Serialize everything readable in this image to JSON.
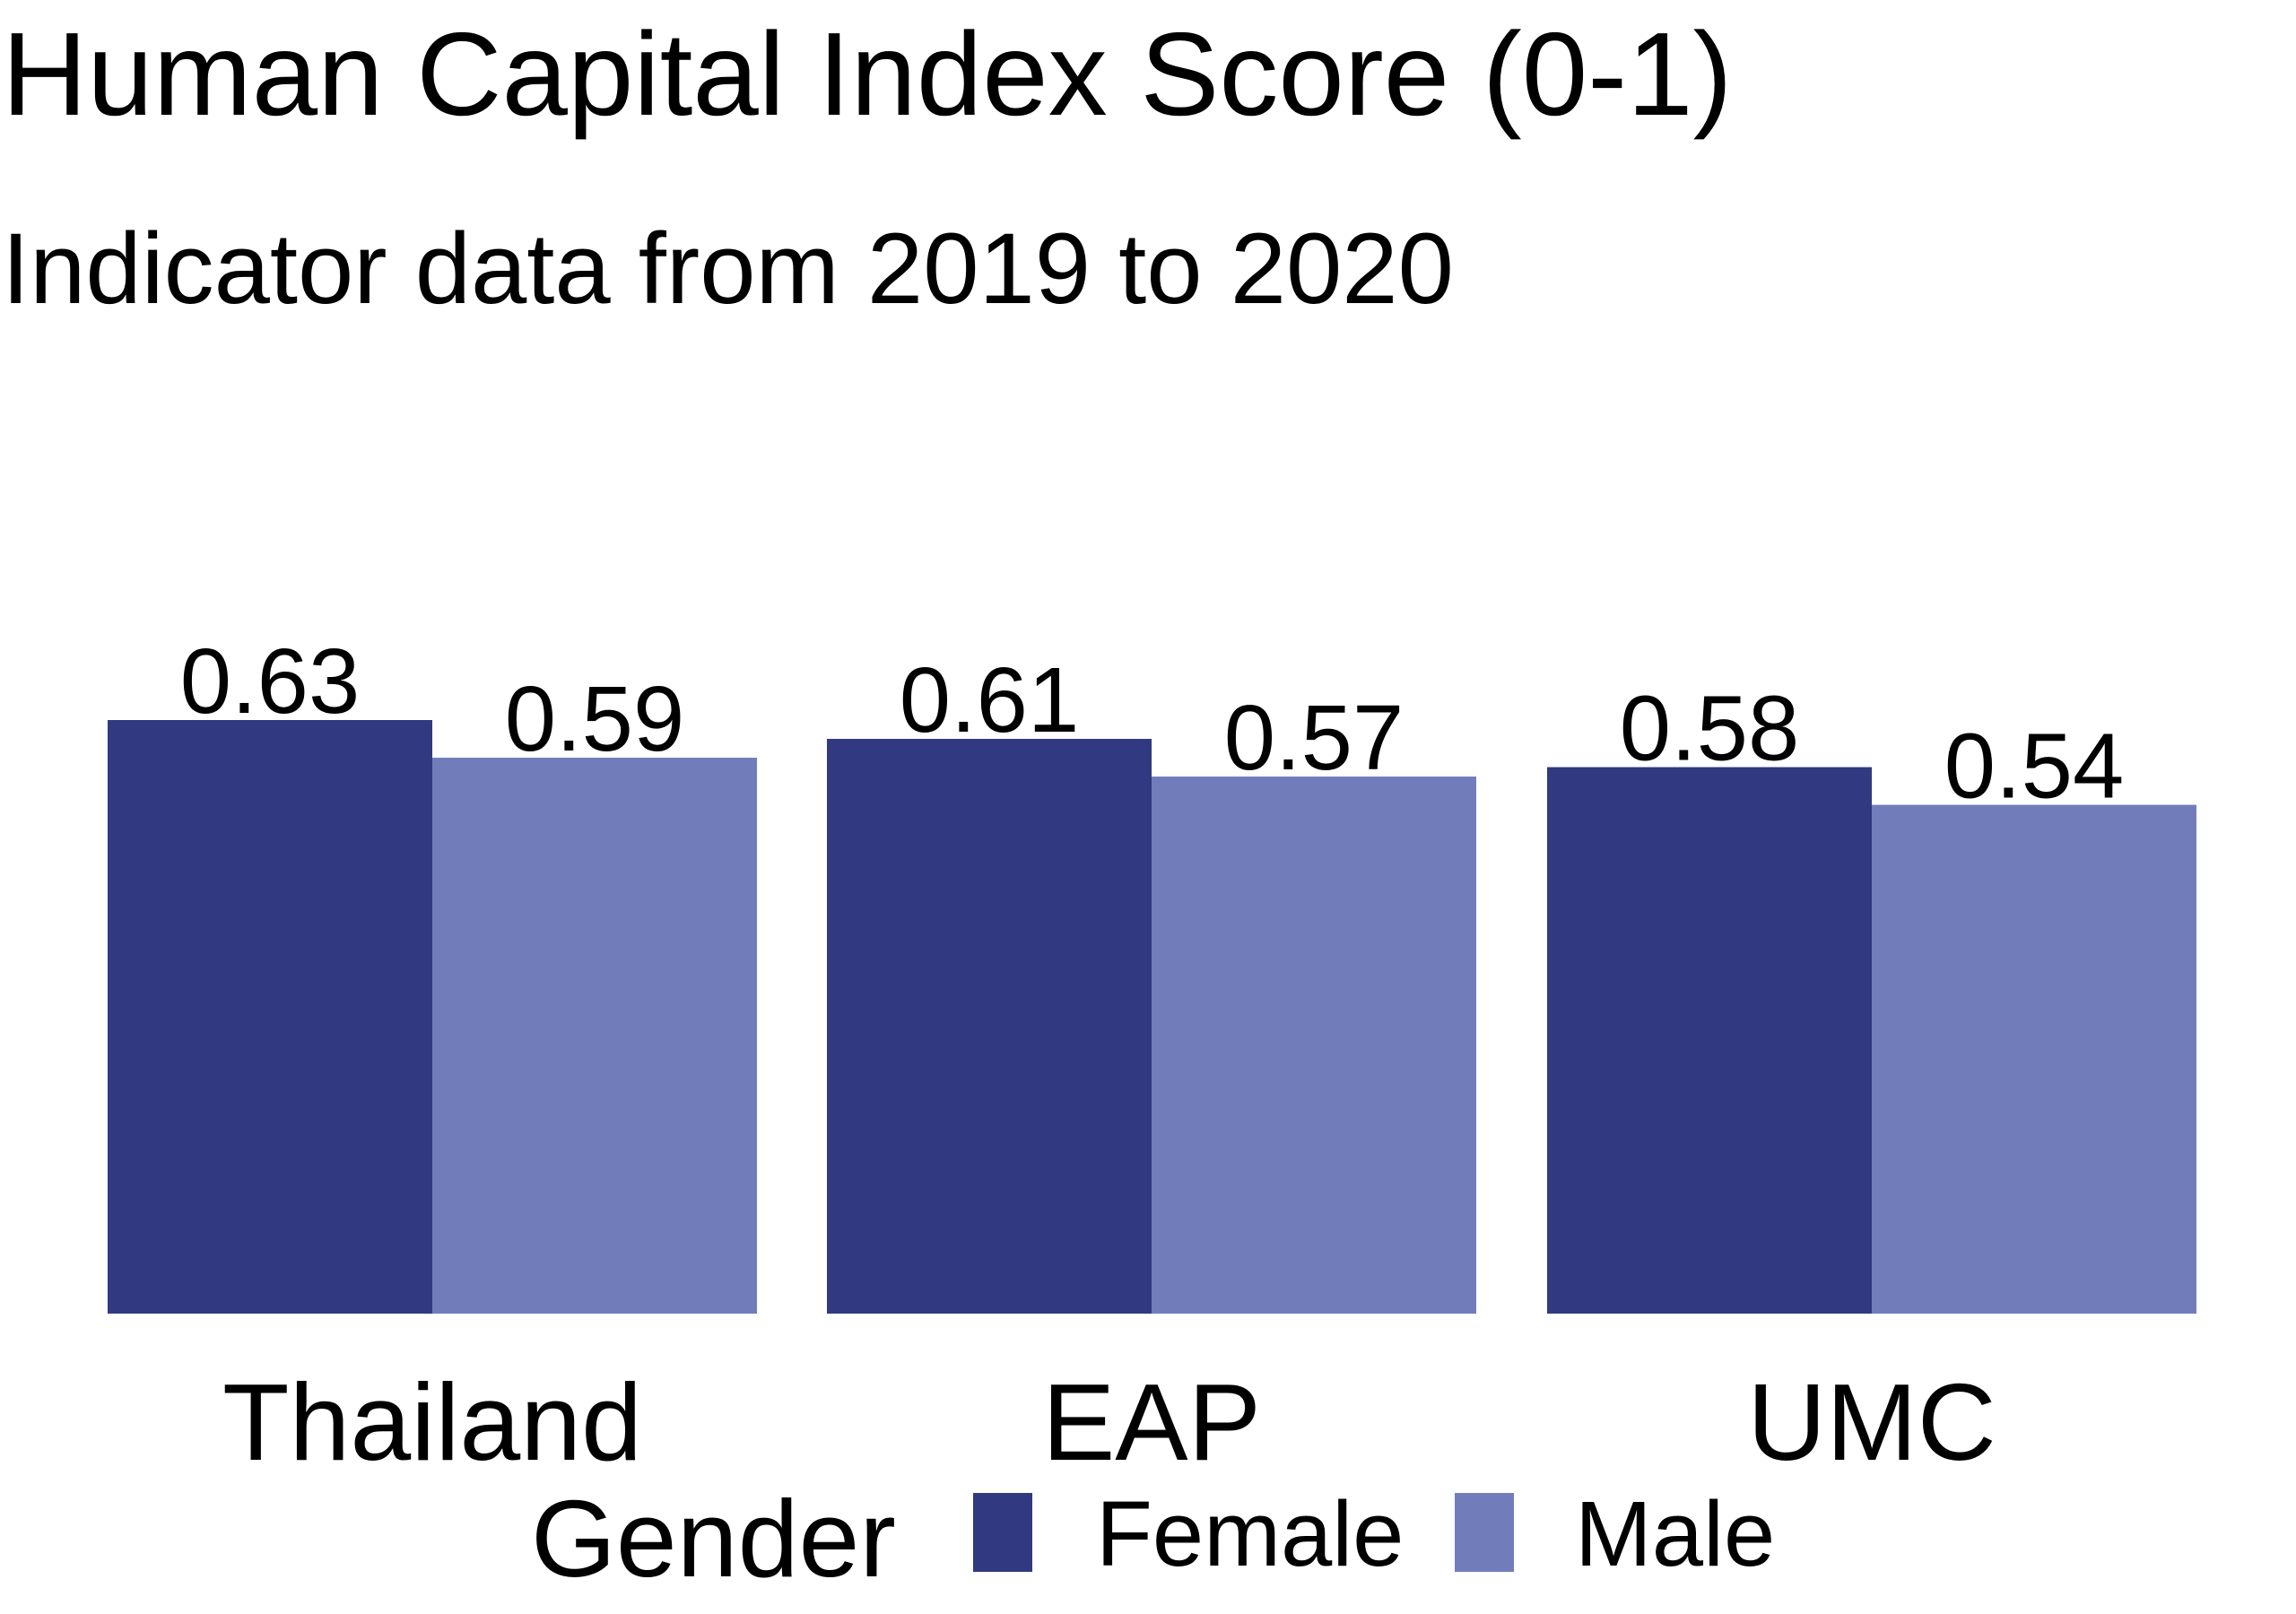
{
  "chart_data": {
    "type": "bar",
    "title": "Human Capital Index Score (0-1)",
    "subtitle": "Indicator data from 2019 to 2020",
    "categories": [
      "Thailand",
      "EAP",
      "UMC"
    ],
    "series": [
      {
        "name": "Female",
        "color": "#313a80",
        "values": [
          0.63,
          0.61,
          0.58
        ]
      },
      {
        "name": "Male",
        "color": "#717dbb",
        "values": [
          0.59,
          0.57,
          0.54
        ]
      }
    ],
    "value_labels": [
      [
        "0.63",
        "0.61",
        "0.58"
      ],
      [
        "0.59",
        "0.57",
        "0.54"
      ]
    ],
    "ylim": [
      0,
      0.63
    ],
    "grid": false,
    "legend": {
      "title": "Gender",
      "position": "bottom"
    }
  }
}
